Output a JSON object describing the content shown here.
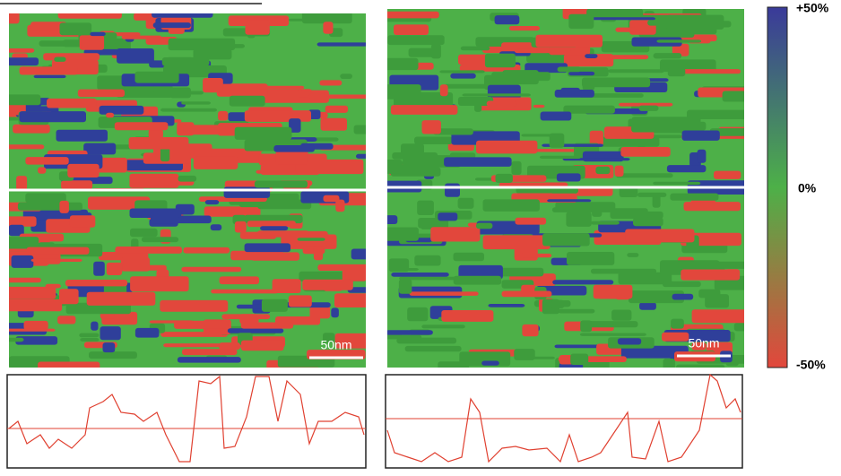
{
  "colorbar": {
    "top_label": "+50%",
    "middle_label": "0%",
    "bottom_label": "-50%"
  },
  "maps": [
    {
      "scale_bar": "50nm"
    },
    {
      "scale_bar": "50nm"
    }
  ]
}
